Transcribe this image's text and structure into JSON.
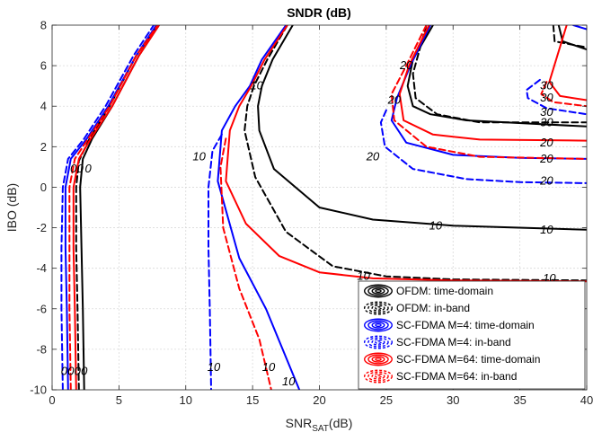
{
  "chart_data": {
    "type": "line",
    "title": "SNDR (dB)",
    "xlabel": "SNR",
    "xlabel_sub": "SAT",
    "xlabel_unit": "(dB)",
    "ylabel": "IBO (dB)",
    "xlim": [
      0,
      40
    ],
    "ylim": [
      -10,
      8
    ],
    "xticks": [
      0,
      5,
      10,
      15,
      20,
      25,
      30,
      35,
      40
    ],
    "yticks": [
      -10,
      -8,
      -6,
      -4,
      -2,
      0,
      2,
      4,
      6,
      8
    ],
    "grid": true,
    "legend_position": "bottom-right",
    "contour_levels": [
      "10",
      "20",
      "30"
    ],
    "series": [
      {
        "name": "OFDM: time-domain",
        "color": "#000000",
        "dash": "solid",
        "curves": [
          {
            "level": "0",
            "points": [
              [
                2.4,
                -10
              ],
              [
                2.3,
                -6
              ],
              [
                2.2,
                -3
              ],
              [
                2.1,
                0
              ],
              [
                2.3,
                1.4
              ],
              [
                3.0,
                2.4
              ],
              [
                4.5,
                4.0
              ],
              [
                6.5,
                6.5
              ],
              [
                8.0,
                8.0
              ]
            ]
          },
          {
            "level": "10",
            "points": [
              [
                18.0,
                8.0
              ],
              [
                16.5,
                6.3
              ],
              [
                15.7,
                5.0
              ],
              [
                15.4,
                4.0
              ],
              [
                15.5,
                2.8
              ],
              [
                16.6,
                0.9
              ],
              [
                20.0,
                -1.0
              ],
              [
                24.0,
                -1.6
              ],
              [
                30.0,
                -1.9
              ],
              [
                40.0,
                -2.1
              ]
            ]
          },
          {
            "level": "20",
            "points": [
              [
                28.5,
                8.0
              ],
              [
                27.0,
                6.3
              ],
              [
                26.6,
                5.0
              ],
              [
                27.0,
                4.0
              ],
              [
                28.3,
                3.6
              ],
              [
                31.0,
                3.3
              ],
              [
                40.0,
                3.0
              ]
            ]
          },
          {
            "level": "30",
            "points": [
              [
                37.9,
                8.0
              ],
              [
                38.2,
                7.2
              ],
              [
                40.0,
                6.8
              ]
            ]
          }
        ]
      },
      {
        "name": "OFDM: in-band",
        "color": "#000000",
        "dash": "dashed",
        "curves": [
          {
            "level": "0",
            "points": [
              [
                2.0,
                -10
              ],
              [
                1.9,
                -6
              ],
              [
                1.8,
                -3
              ],
              [
                1.8,
                0
              ],
              [
                2.0,
                1.3
              ],
              [
                2.8,
                2.4
              ],
              [
                4.3,
                4.0
              ],
              [
                6.3,
                6.5
              ],
              [
                7.9,
                8.0
              ]
            ]
          },
          {
            "level": "10",
            "points": [
              [
                17.6,
                8.0
              ],
              [
                16.1,
                6.3
              ],
              [
                15.1,
                5.0
              ],
              [
                14.6,
                4.0
              ],
              [
                14.4,
                2.8
              ],
              [
                15.2,
                0.5
              ],
              [
                17.5,
                -2.2
              ],
              [
                21.0,
                -3.9
              ],
              [
                25.0,
                -4.4
              ],
              [
                30.0,
                -4.55
              ],
              [
                40.0,
                -4.6
              ]
            ]
          },
          {
            "level": "20",
            "points": [
              [
                28.0,
                8.0
              ],
              [
                27.0,
                5.6
              ],
              [
                27.2,
                4.4
              ],
              [
                28.8,
                3.6
              ],
              [
                32.0,
                3.2
              ],
              [
                40.0,
                3.2
              ]
            ]
          },
          {
            "level": "30",
            "points": [
              [
                37.5,
                8.0
              ],
              [
                37.6,
                7.2
              ],
              [
                40.0,
                6.9
              ]
            ]
          }
        ]
      },
      {
        "name": "SC-FDMA M=4: time-domain",
        "color": "#0000ff",
        "dash": "solid",
        "curves": [
          {
            "level": "0",
            "points": [
              [
                1.2,
                -10
              ],
              [
                1.1,
                -6
              ],
              [
                1.0,
                -3
              ],
              [
                1.0,
                0
              ],
              [
                1.4,
                1.4
              ],
              [
                2.6,
                2.4
              ],
              [
                4.2,
                4.0
              ],
              [
                6.3,
                6.5
              ],
              [
                7.8,
                8.0
              ]
            ]
          },
          {
            "level": "10",
            "points": [
              [
                17.5,
                8.0
              ],
              [
                15.7,
                6.3
              ],
              [
                14.8,
                5.0
              ],
              [
                13.7,
                4.0
              ],
              [
                12.7,
                2.8
              ],
              [
                12.4,
                0.3
              ],
              [
                14.0,
                -3.5
              ],
              [
                16.0,
                -6.0
              ],
              [
                18.5,
                -10.0
              ]
            ]
          },
          {
            "level": "20",
            "points": [
              [
                28.3,
                8.0
              ],
              [
                26.8,
                6.0
              ],
              [
                25.8,
                4.4
              ],
              [
                25.4,
                3.3
              ],
              [
                26.5,
                2.2
              ],
              [
                30.0,
                1.6
              ],
              [
                35.0,
                1.45
              ],
              [
                40.0,
                1.4
              ]
            ]
          },
          {
            "level": "30",
            "points": [
              [
                39.0,
                8.0
              ],
              [
                40.0,
                7.8
              ]
            ]
          }
        ]
      },
      {
        "name": "SC-FDMA M=4: in-band",
        "color": "#0000ff",
        "dash": "dashed",
        "curves": [
          {
            "level": "0",
            "points": [
              [
                0.8,
                -10
              ],
              [
                0.7,
                -6
              ],
              [
                0.7,
                -3
              ],
              [
                0.8,
                0
              ],
              [
                1.2,
                1.4
              ],
              [
                2.4,
                2.4
              ],
              [
                4.0,
                4.0
              ],
              [
                6.1,
                6.5
              ],
              [
                7.6,
                8.0
              ]
            ]
          },
          {
            "level": "10",
            "points": [
              [
                12.7,
                2.6
              ],
              [
                12.0,
                1.8
              ],
              [
                11.7,
                0.0
              ],
              [
                11.7,
                -3.0
              ],
              [
                11.8,
                -6.0
              ],
              [
                11.9,
                -10.0
              ]
            ]
          },
          {
            "level": "20",
            "points": [
              [
                25.0,
                3.8
              ],
              [
                24.6,
                3.2
              ],
              [
                24.9,
                2.0
              ],
              [
                27.0,
                0.9
              ],
              [
                31.0,
                0.4
              ],
              [
                35.0,
                0.25
              ],
              [
                40.0,
                0.2
              ]
            ]
          },
          {
            "level": "30",
            "points": [
              [
                36.5,
                5.3
              ],
              [
                35.5,
                4.8
              ],
              [
                35.6,
                4.4
              ],
              [
                37.0,
                3.9
              ],
              [
                40.0,
                3.6
              ]
            ]
          }
        ]
      },
      {
        "name": "SC-FDMA M=64: time-domain",
        "color": "#ff0000",
        "dash": "solid",
        "curves": [
          {
            "level": "0",
            "points": [
              [
                1.8,
                -10
              ],
              [
                1.7,
                -6
              ],
              [
                1.6,
                -3
              ],
              [
                1.6,
                0
              ],
              [
                2.0,
                1.4
              ],
              [
                2.9,
                2.4
              ],
              [
                4.5,
                4.0
              ],
              [
                6.5,
                6.5
              ],
              [
                8.0,
                8.0
              ]
            ]
          },
          {
            "level": "10",
            "points": [
              [
                17.6,
                8.0
              ],
              [
                15.9,
                6.3
              ],
              [
                14.9,
                5.0
              ],
              [
                14.0,
                4.0
              ],
              [
                13.3,
                2.8
              ],
              [
                13.0,
                0.3
              ],
              [
                14.5,
                -1.8
              ],
              [
                17.0,
                -3.4
              ],
              [
                20.0,
                -4.2
              ],
              [
                24.0,
                -4.5
              ],
              [
                30.0,
                -4.6
              ],
              [
                40.0,
                -4.65
              ]
            ]
          },
          {
            "level": "20",
            "points": [
              [
                28.2,
                8.0
              ],
              [
                26.7,
                6.0
              ],
              [
                26.0,
                4.6
              ],
              [
                26.3,
                3.3
              ],
              [
                28.5,
                2.6
              ],
              [
                32.0,
                2.35
              ],
              [
                40.0,
                2.3
              ]
            ]
          },
          {
            "level": "30",
            "points": [
              [
                38.5,
                8.0
              ],
              [
                37.2,
                5.2
              ],
              [
                38.0,
                4.5
              ],
              [
                40.0,
                4.3
              ]
            ]
          }
        ]
      },
      {
        "name": "SC-FDMA M=64: in-band",
        "color": "#ff0000",
        "dash": "dashed",
        "curves": [
          {
            "level": "0",
            "points": [
              [
                1.4,
                -10
              ],
              [
                1.3,
                -6
              ],
              [
                1.3,
                -3
              ],
              [
                1.3,
                0
              ],
              [
                1.7,
                1.4
              ],
              [
                2.7,
                2.4
              ],
              [
                4.3,
                4.0
              ],
              [
                6.3,
                6.5
              ],
              [
                7.9,
                8.0
              ]
            ]
          },
          {
            "level": "10",
            "points": [
              [
                13.0,
                2.4
              ],
              [
                12.6,
                1.0
              ],
              [
                12.8,
                -2.0
              ],
              [
                14.0,
                -5.0
              ],
              [
                15.5,
                -7.5
              ],
              [
                16.4,
                -10.0
              ]
            ]
          },
          {
            "level": "20",
            "points": [
              [
                28.0,
                8.0
              ],
              [
                26.5,
                6.0
              ],
              [
                25.4,
                4.6
              ],
              [
                25.6,
                3.3
              ],
              [
                28.0,
                2.0
              ],
              [
                32.0,
                1.5
              ],
              [
                40.0,
                1.4
              ]
            ]
          },
          {
            "level": "30",
            "points": [
              [
                37.0,
                5.2
              ],
              [
                36.6,
                4.6
              ],
              [
                37.5,
                4.2
              ],
              [
                40.0,
                4.0
              ]
            ]
          }
        ]
      }
    ],
    "contour_labels": [
      {
        "text": "0",
        "x": 0.9,
        "y": -9.1,
        "color": "#000000"
      },
      {
        "text": "0",
        "x": 1.4,
        "y": -9.1,
        "color": "#000000"
      },
      {
        "text": "0",
        "x": 1.9,
        "y": -9.1,
        "color": "#000000"
      },
      {
        "text": "0",
        "x": 2.4,
        "y": -9.1,
        "color": "#000000"
      },
      {
        "text": "0",
        "x": 1.6,
        "y": 0.9,
        "color": "#000000"
      },
      {
        "text": "0",
        "x": 2.1,
        "y": 0.9,
        "color": "#000000"
      },
      {
        "text": "0",
        "x": 2.7,
        "y": 0.9,
        "color": "#000000"
      },
      {
        "text": "10",
        "x": 28.7,
        "y": -1.9,
        "color": "#000000"
      },
      {
        "text": "10",
        "x": 37.0,
        "y": -2.1,
        "color": "#000000"
      },
      {
        "text": "10",
        "x": 23.3,
        "y": -4.4,
        "color": "#000000"
      },
      {
        "text": "10",
        "x": 37.2,
        "y": -4.5,
        "color": "#000000"
      },
      {
        "text": "10",
        "x": 11.0,
        "y": 1.5,
        "color": "#000000"
      },
      {
        "text": "10",
        "x": 12.1,
        "y": -8.9,
        "color": "#000000"
      },
      {
        "text": "10",
        "x": 16.2,
        "y": -8.9,
        "color": "#000000"
      },
      {
        "text": "10",
        "x": 17.7,
        "y": -9.6,
        "color": "#000000"
      },
      {
        "text": "10",
        "x": 15.3,
        "y": 5.0,
        "color": "#000000"
      },
      {
        "text": "20",
        "x": 26.5,
        "y": 6.0,
        "color": "#000000"
      },
      {
        "text": "20",
        "x": 25.6,
        "y": 4.3,
        "color": "#000000"
      },
      {
        "text": "20",
        "x": 24.0,
        "y": 1.5,
        "color": "#000000"
      },
      {
        "text": "20",
        "x": 37.0,
        "y": 2.2,
        "color": "#000000"
      },
      {
        "text": "20",
        "x": 37.0,
        "y": 1.4,
        "color": "#000000"
      },
      {
        "text": "20",
        "x": 37.0,
        "y": 0.3,
        "color": "#000000"
      },
      {
        "text": "30",
        "x": 37.0,
        "y": 5.0,
        "color": "#000000"
      },
      {
        "text": "30",
        "x": 37.0,
        "y": 4.4,
        "color": "#000000"
      },
      {
        "text": "30",
        "x": 37.0,
        "y": 3.7,
        "color": "#000000"
      },
      {
        "text": "30",
        "x": 37.0,
        "y": 3.2,
        "color": "#000000"
      }
    ]
  }
}
